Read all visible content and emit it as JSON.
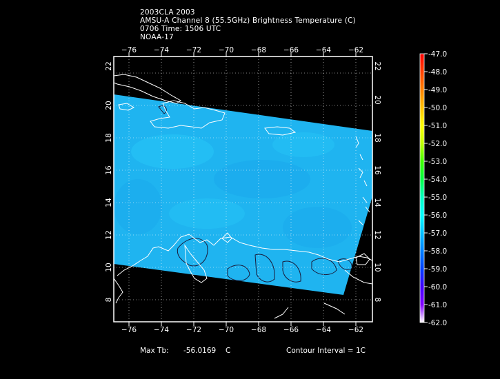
{
  "title": {
    "line1": "2003CLA 2003",
    "line2": "AMSU-A Channel 8 (55.5GHz) Brightness Temperature (C)",
    "line3": "0706 Time: 1506 UTC",
    "line4": "NOAA-17"
  },
  "axes": {
    "lon_ticks": [
      "−76",
      "−74",
      "−72",
      "−70",
      "−68",
      "−66",
      "−64",
      "−62"
    ],
    "lat_ticks": [
      "8",
      "10",
      "12",
      "14",
      "16",
      "18",
      "20",
      "22"
    ],
    "lon_range": [
      -77.0,
      -61.0
    ],
    "lat_range": [
      6.7,
      23.3
    ],
    "grid": "dotted"
  },
  "colorbar": {
    "labels": [
      "-47.0",
      "-48.0",
      "-49.0",
      "-50.0",
      "-51.0",
      "-52.0",
      "-53.0",
      "-54.0",
      "-55.0",
      "-56.0",
      "-57.0",
      "-58.0",
      "-59.0",
      "-60.0",
      "-61.0",
      "-62.0"
    ],
    "colors": [
      "#ff0000",
      "#ff4000",
      "#ff8000",
      "#ffbf00",
      "#ffff00",
      "#c0ff00",
      "#40ff00",
      "#00ff40",
      "#00ffbf",
      "#00ffff",
      "#00bfff",
      "#0080ff",
      "#0040ff",
      "#4000ff",
      "#8000ff",
      "#ffffff"
    ]
  },
  "footer": {
    "max_tb_label": "Max Tb:",
    "max_tb_value": "-56.0169",
    "unit": "C",
    "contour_interval": "Contour Interval = 1C"
  },
  "colors": {
    "swath_main": "#1fb4f0",
    "swath_light": "#22c8f8",
    "frame": "#ffffff",
    "coast": "#ffffff",
    "contour": "#1a1a3a"
  }
}
